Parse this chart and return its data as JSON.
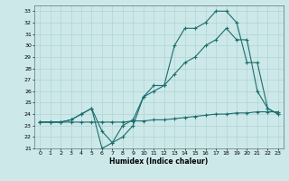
{
  "title": "",
  "xlabel": "Humidex (Indice chaleur)",
  "ylabel": "",
  "xlim": [
    -0.5,
    23.5
  ],
  "ylim": [
    21,
    33.5
  ],
  "yticks": [
    21,
    22,
    23,
    24,
    25,
    26,
    27,
    28,
    29,
    30,
    31,
    32,
    33
  ],
  "xticks": [
    0,
    1,
    2,
    3,
    4,
    5,
    6,
    7,
    8,
    9,
    10,
    11,
    12,
    13,
    14,
    15,
    16,
    17,
    18,
    19,
    20,
    21,
    22,
    23
  ],
  "background_color": "#cde8e8",
  "grid_color": "#b0d4d4",
  "line_color": "#1a6e6e",
  "series": [
    {
      "x": [
        0,
        1,
        2,
        3,
        4,
        5,
        6,
        7,
        8,
        9,
        10,
        11,
        12,
        13,
        14,
        15,
        16,
        17,
        18,
        19,
        20,
        21,
        22,
        23
      ],
      "y": [
        23.3,
        23.3,
        23.3,
        23.3,
        23.3,
        23.3,
        23.3,
        23.3,
        23.3,
        23.4,
        23.4,
        23.5,
        23.5,
        23.6,
        23.7,
        23.8,
        23.9,
        24.0,
        24.0,
        24.1,
        24.1,
        24.2,
        24.2,
        24.2
      ]
    },
    {
      "x": [
        0,
        1,
        2,
        3,
        4,
        5,
        6,
        7,
        8,
        9,
        10,
        11,
        12,
        13,
        14,
        15,
        16,
        17,
        18,
        19,
        20,
        21,
        22,
        23
      ],
      "y": [
        23.3,
        23.3,
        23.3,
        23.5,
        24.0,
        24.5,
        21.0,
        21.5,
        23.0,
        23.5,
        25.5,
        26.0,
        26.5,
        27.5,
        28.5,
        29.0,
        30.0,
        30.5,
        31.5,
        30.5,
        30.5,
        26.0,
        24.5,
        24.0
      ]
    },
    {
      "x": [
        0,
        1,
        2,
        3,
        4,
        5,
        6,
        7,
        8,
        9,
        10,
        11,
        12,
        13,
        14,
        15,
        16,
        17,
        18,
        19,
        20,
        21,
        22,
        23
      ],
      "y": [
        23.3,
        23.3,
        23.3,
        23.5,
        24.0,
        24.5,
        22.5,
        21.5,
        22.0,
        23.0,
        25.5,
        26.5,
        26.5,
        30.0,
        31.5,
        31.5,
        32.0,
        33.0,
        33.0,
        32.0,
        28.5,
        28.5,
        24.5,
        24.0
      ]
    }
  ]
}
